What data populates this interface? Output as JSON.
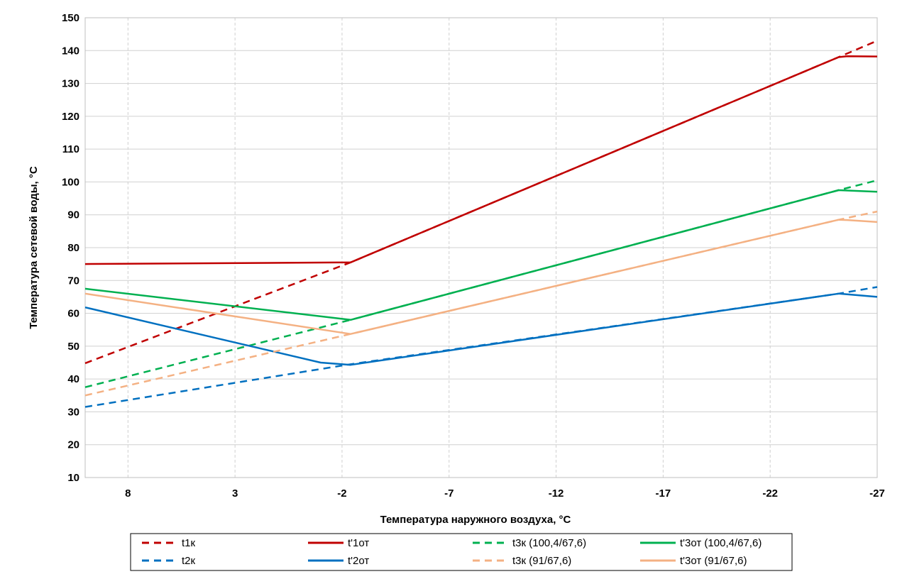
{
  "chart_data": {
    "type": "line",
    "title": "",
    "xlabel": "Температура наружного воздуха, °С",
    "ylabel": "Температура сетевой воды, °С",
    "xlim": [
      10,
      -27
    ],
    "ylim": [
      10,
      150
    ],
    "xticks": [
      8,
      3,
      -2,
      -7,
      -12,
      -17,
      -22,
      -27
    ],
    "yticks": [
      10,
      20,
      30,
      40,
      50,
      60,
      70,
      80,
      90,
      100,
      110,
      120,
      130,
      140,
      150
    ],
    "grid": true,
    "legend_position": "bottom",
    "series": [
      {
        "name": "t1к",
        "color": "#c00000",
        "dash": true,
        "x": [
          10,
          -2.4,
          -25.2,
          -27
        ],
        "y": [
          44.8,
          75.5,
          138.0,
          143.0
        ]
      },
      {
        "name": "t'1от",
        "color": "#c00000",
        "dash": false,
        "x": [
          10,
          -2.4,
          -25.2,
          -25.6,
          -27
        ],
        "y": [
          75.0,
          75.5,
          138.0,
          138.3,
          138.2
        ]
      },
      {
        "name": "t3к (100,4/67,6)",
        "color": "#00b050",
        "dash": true,
        "x": [
          10,
          -2.4,
          -25.2,
          -27
        ],
        "y": [
          37.5,
          58.0,
          97.5,
          100.5
        ]
      },
      {
        "name": "t'3от (100,4/67,6)",
        "color": "#00b050",
        "dash": false,
        "x": [
          10,
          -2.4,
          -25.2,
          -25.6,
          -27
        ],
        "y": [
          67.5,
          58.0,
          97.5,
          97.4,
          97.0
        ]
      },
      {
        "name": "t2к",
        "color": "#0070c0",
        "dash": true,
        "x": [
          10,
          -2.4,
          -25.2,
          -27
        ],
        "y": [
          31.5,
          44.5,
          66.0,
          68.0
        ]
      },
      {
        "name": "t'2от",
        "color": "#0070c0",
        "dash": false,
        "x": [
          10,
          -1.0,
          -2.4,
          -25.2,
          -27
        ],
        "y": [
          61.8,
          45.0,
          44.3,
          66.0,
          65.0
        ]
      },
      {
        "name": "t3к (91/67,6)",
        "color": "#f4b183",
        "dash": true,
        "x": [
          10,
          -2.4,
          -25.2,
          -27
        ],
        "y": [
          35.0,
          53.7,
          88.5,
          91.0
        ]
      },
      {
        "name": "t'3от (91/67,6)",
        "color": "#f4b183",
        "dash": false,
        "x": [
          10,
          -2.4,
          -25.2,
          -25.6,
          -27
        ],
        "y": [
          66.0,
          53.7,
          88.5,
          88.4,
          87.8
        ]
      }
    ],
    "legend_order": [
      0,
      1,
      2,
      3,
      4,
      5,
      6,
      7
    ]
  }
}
